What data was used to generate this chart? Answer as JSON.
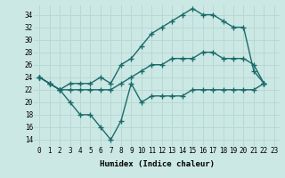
{
  "x": [
    0,
    1,
    2,
    3,
    4,
    5,
    6,
    7,
    8,
    9,
    10,
    11,
    12,
    13,
    14,
    15,
    16,
    17,
    18,
    19,
    20,
    21,
    22,
    23
  ],
  "line_max": [
    24,
    23,
    22,
    23,
    23,
    23,
    24,
    23,
    26,
    27,
    29,
    31,
    32,
    33,
    34,
    35,
    34,
    34,
    33,
    32,
    32,
    25,
    23,
    null
  ],
  "line_avg": [
    24,
    23,
    22,
    22,
    22,
    22,
    22,
    22,
    23,
    24,
    25,
    26,
    26,
    27,
    27,
    27,
    28,
    28,
    27,
    27,
    27,
    26,
    23,
    null
  ],
  "line_min": [
    24,
    23,
    22,
    20,
    18,
    18,
    16,
    14,
    17,
    23,
    20,
    21,
    21,
    21,
    21,
    22,
    22,
    22,
    22,
    22,
    22,
    22,
    23,
    null
  ],
  "bg_color": "#cce8e4",
  "line_color": "#1a6b6a",
  "grid_color": "#b8d8d4",
  "xlabel": "Humidex (Indice chaleur)",
  "ylim": [
    13,
    35.5
  ],
  "xlim": [
    -0.5,
    23.5
  ],
  "yticks": [
    14,
    16,
    18,
    20,
    22,
    24,
    26,
    28,
    30,
    32,
    34
  ],
  "xticks": [
    0,
    1,
    2,
    3,
    4,
    5,
    6,
    7,
    8,
    9,
    10,
    11,
    12,
    13,
    14,
    15,
    16,
    17,
    18,
    19,
    20,
    21,
    22,
    23
  ],
  "xtick_labels": [
    "0",
    "1",
    "2",
    "3",
    "4",
    "5",
    "6",
    "7",
    "8",
    "9",
    "10",
    "11",
    "12",
    "13",
    "14",
    "15",
    "16",
    "17",
    "18",
    "19",
    "20",
    "21",
    "22",
    "23"
  ],
  "marker": "+",
  "markersize": 4,
  "linewidth": 1.0,
  "tick_fontsize": 5.5,
  "xlabel_fontsize": 6.5
}
